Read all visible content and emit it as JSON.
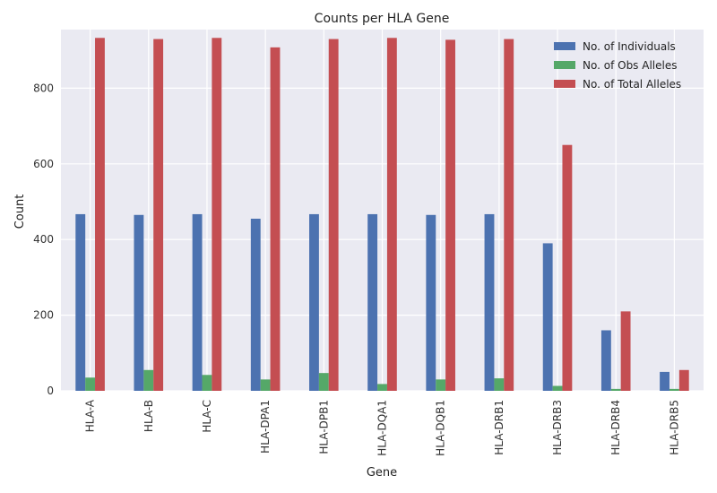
{
  "chart_data": {
    "type": "bar",
    "title": "Counts per HLA Gene",
    "xlabel": "Gene",
    "ylabel": "Count",
    "ylim": [
      0,
      955
    ],
    "yticks": [
      0,
      200,
      400,
      600,
      800
    ],
    "grid": true,
    "legend_position": "top-right",
    "categories": [
      "HLA-A",
      "HLA-B",
      "HLA-C",
      "HLA-DPA1",
      "HLA-DPB1",
      "HLA-DQA1",
      "HLA-DQB1",
      "HLA-DRB1",
      "HLA-DRB3",
      "HLA-DRB4",
      "HLA-DRB5"
    ],
    "series": [
      {
        "name": "No. of Individuals",
        "color": "#4c72b0",
        "values": [
          467,
          465,
          467,
          455,
          467,
          467,
          465,
          467,
          390,
          160,
          50
        ]
      },
      {
        "name": "No. of Obs Alleles",
        "color": "#55a868",
        "values": [
          35,
          55,
          42,
          30,
          47,
          18,
          30,
          33,
          13,
          5,
          5
        ]
      },
      {
        "name": "No. of Total Alleles",
        "color": "#c44e52",
        "values": [
          933,
          930,
          933,
          908,
          930,
          933,
          928,
          930,
          650,
          210,
          55
        ]
      }
    ]
  }
}
